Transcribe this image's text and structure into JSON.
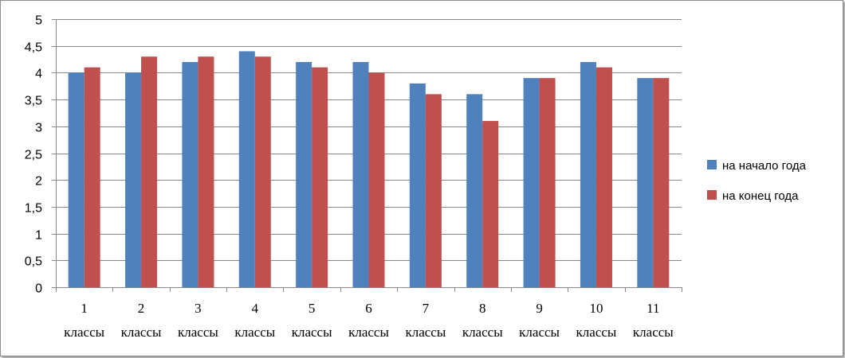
{
  "chart_data": {
    "type": "bar",
    "categories": [
      [
        "1",
        "классы"
      ],
      [
        "2",
        "классы"
      ],
      [
        "3",
        "классы"
      ],
      [
        "4",
        "классы"
      ],
      [
        "5",
        "классы"
      ],
      [
        "6",
        "классы"
      ],
      [
        "7",
        "классы"
      ],
      [
        "8",
        "классы"
      ],
      [
        "9",
        "классы"
      ],
      [
        "10",
        "классы"
      ],
      [
        "11",
        "классы"
      ]
    ],
    "series": [
      {
        "name": "на начало года",
        "color": "#4f81bd",
        "values": [
          4.0,
          4.0,
          4.2,
          4.4,
          4.2,
          4.2,
          3.8,
          3.6,
          3.9,
          4.2,
          3.9
        ]
      },
      {
        "name": "на конец года",
        "color": "#c0504d",
        "values": [
          4.1,
          4.3,
          4.3,
          4.3,
          4.1,
          4.0,
          3.6,
          3.1,
          3.9,
          4.1,
          3.9
        ]
      }
    ],
    "ylim": [
      0,
      5
    ],
    "yticks": [
      0,
      0.5,
      1,
      1.5,
      2,
      2.5,
      3,
      3.5,
      4,
      4.5,
      5
    ],
    "ytick_labels": [
      "0",
      "0,5",
      "1",
      "1,5",
      "2",
      "2,5",
      "3",
      "3,5",
      "4",
      "4,5",
      "5"
    ],
    "grid": true,
    "legend_position": "right",
    "gridline_color": "#868686",
    "axis_color": "#868686"
  }
}
